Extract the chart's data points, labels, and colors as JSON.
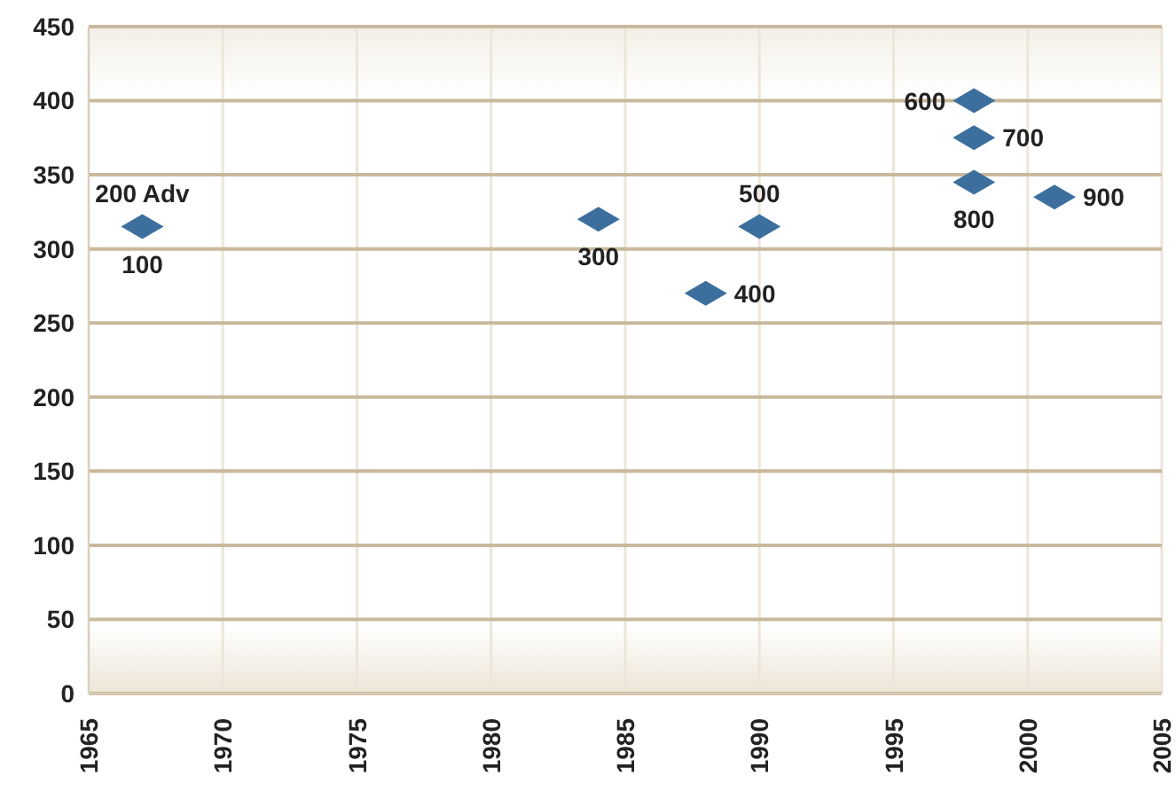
{
  "chart_data": {
    "type": "scatter",
    "x": [
      1967,
      1984,
      1988,
      1990,
      1998,
      1998,
      1998,
      2001
    ],
    "values": [
      315,
      320,
      270,
      315,
      400,
      375,
      345,
      335
    ],
    "color": "#3d6f9e",
    "marker": "diamond",
    "grid": true,
    "xlim": [
      1965,
      2005
    ],
    "xticks": [
      1965,
      1970,
      1975,
      1980,
      1985,
      1990,
      1995,
      2000,
      2005
    ],
    "ylim": [
      0,
      450
    ],
    "yticks": [
      0,
      50,
      100,
      150,
      200,
      250,
      300,
      350,
      400,
      450
    ],
    "annotations": [
      {
        "text": "100",
        "x": 1967,
        "y": 315
      },
      {
        "text": "200 Adv",
        "x": 1967,
        "y": 315
      },
      {
        "text": "300",
        "x": 1984,
        "y": 320
      },
      {
        "text": "400",
        "x": 1988,
        "y": 270
      },
      {
        "text": "500",
        "x": 1990,
        "y": 315
      },
      {
        "text": "600",
        "x": 1998,
        "y": 400
      },
      {
        "text": "700",
        "x": 1998,
        "y": 375
      },
      {
        "text": "800",
        "x": 1998,
        "y": 345
      },
      {
        "text": "900",
        "x": 2001,
        "y": 335
      }
    ]
  }
}
